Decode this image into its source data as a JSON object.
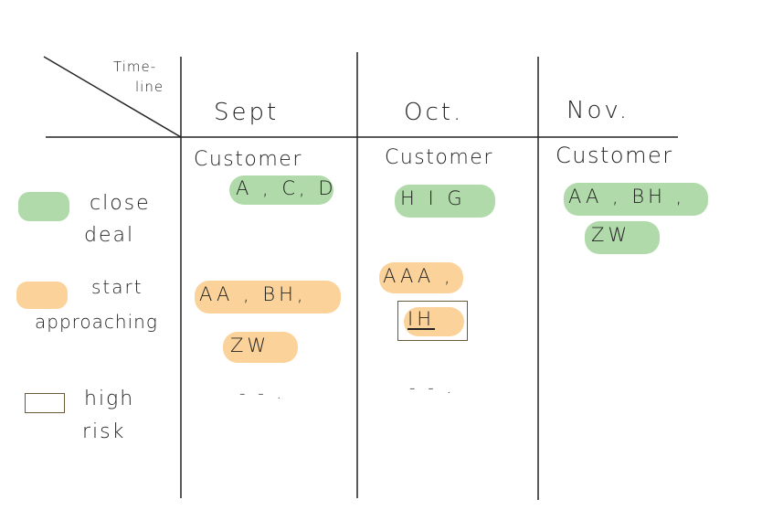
{
  "corner_label": {
    "line1": "Time-",
    "line2": "line"
  },
  "months": [
    "Sept",
    "Oct.",
    "Nov."
  ],
  "columns": {
    "sept": {
      "header": "Customer",
      "close_deal": "A , C, D",
      "approaching_line1": "AA , BH,",
      "approaching_line2": "ZW",
      "more": "- - ."
    },
    "oct": {
      "header": "Customer",
      "close_deal": "H I G",
      "approaching_line1": "AAA ,",
      "high_risk": "IH",
      "more": "- - ."
    },
    "nov": {
      "header": "Customer",
      "close_deal_line1": "AA , BH ,",
      "close_deal_line2": "ZW"
    }
  },
  "legend": {
    "close_deal": {
      "line1": "close",
      "line2": "deal",
      "color": "#96ce8c"
    },
    "start_approaching": {
      "line1": "start",
      "line2": "approaching",
      "color": "#fac478"
    },
    "high_risk": {
      "line1": "high",
      "line2": "risk",
      "border_color": "#6a5a3a"
    }
  }
}
